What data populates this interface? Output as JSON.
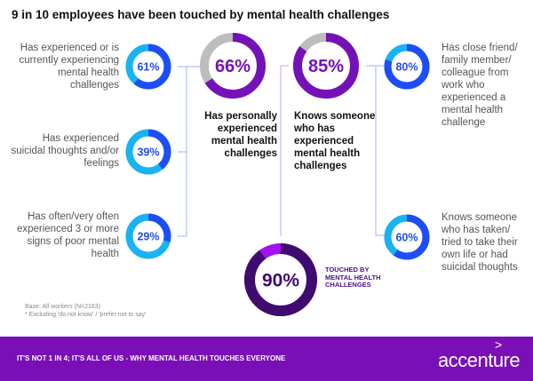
{
  "title": "9 in 10 employees have been touched  by mental health challenges",
  "left_items": [
    {
      "value": 61,
      "label": "61%",
      "text": "Has experienced or is currently experiencing mental health challenges"
    },
    {
      "value": 39,
      "label": "39%",
      "text": "Has experienced suicidal thoughts and/or feelings"
    },
    {
      "value": 29,
      "label": "29%",
      "text": "Has often/very often experienced 3 or more signs of poor mental health"
    }
  ],
  "center_items": [
    {
      "value": 66,
      "label": "66%",
      "text": "Has personally experienced mental health challenges"
    },
    {
      "value": 85,
      "label": "85%",
      "text": "Knows someone who has experienced mental health challenges"
    }
  ],
  "right_items": [
    {
      "value": 80,
      "label": "80%",
      "text": "Has close friend/ family member/ colleague from work who experienced a mental health challenge"
    },
    {
      "value": 60,
      "label": "60%",
      "text": "Knows someone who has taken/ tried to take their own life or had suicidal thoughts"
    }
  ],
  "total": {
    "value": 90,
    "label": "90%",
    "text": "TOUCHED BY MENTAL HEALTH CHALLENGES"
  },
  "base_note": "Base: All workers (N=2163)",
  "exclusion_note": "* Excluding 'do not know' / 'prefer not to say'",
  "footer": {
    "text": "IT'S NOT 1 IN 4; IT'S ALL OF US - WHY MENTAL HEALTH TOUCHES EVERYONE",
    "logo": "accenture"
  },
  "colors": {
    "blue": "#1f4df5",
    "cyan": "#19b2f3",
    "purple": "#7412b8",
    "gray": "#bdbdbd",
    "dark_purple": "#3f0b6e",
    "bright_purple": "#a410f5",
    "footer": "#7a0fb8"
  }
}
